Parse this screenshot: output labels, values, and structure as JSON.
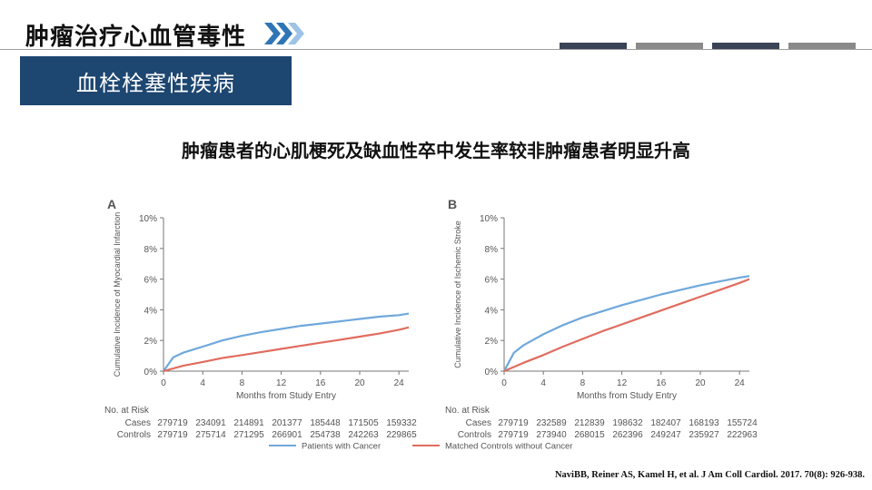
{
  "header": {
    "title": "肿瘤治疗心血管毒性"
  },
  "colors": {
    "deco_bars": [
      "#3b4456",
      "#8a8a8a",
      "#3b4456",
      "#8a8a8a"
    ],
    "banner_bg": "#1d4671",
    "cancer": "#6fa8dc",
    "controls": "#e06c5e"
  },
  "section": {
    "title": "血栓栓塞性疾病"
  },
  "subtitle": "肿瘤患者的心肌梗死及缺血性卒中发生率较非肿瘤患者明显升高",
  "chart_data": [
    {
      "panel": "A",
      "type": "line",
      "ylabel": "Cumulative Incidence of Myocardial Infarction",
      "xlabel": "Months from Study Entry",
      "xlim": [
        0,
        25
      ],
      "ylim": [
        0,
        10
      ],
      "xticks": [
        "0",
        "4",
        "8",
        "12",
        "16",
        "20",
        "24"
      ],
      "yticks": [
        "0%",
        "2%",
        "4%",
        "6%",
        "8%",
        "10%"
      ],
      "series": [
        {
          "name": "Patients with Cancer",
          "x": [
            0,
            1,
            2,
            4,
            6,
            8,
            10,
            12,
            14,
            16,
            18,
            20,
            22,
            24,
            25
          ],
          "y": [
            0,
            0.9,
            1.2,
            1.6,
            2.0,
            2.3,
            2.55,
            2.75,
            2.95,
            3.1,
            3.25,
            3.4,
            3.55,
            3.65,
            3.75
          ]
        },
        {
          "name": "Matched Controls without Cancer",
          "x": [
            0,
            2,
            4,
            6,
            8,
            10,
            12,
            14,
            16,
            18,
            20,
            22,
            24,
            25
          ],
          "y": [
            0,
            0.35,
            0.6,
            0.85,
            1.05,
            1.25,
            1.45,
            1.65,
            1.85,
            2.05,
            2.25,
            2.45,
            2.7,
            2.85
          ]
        }
      ],
      "at_risk": {
        "title": "No. at Risk",
        "rows": [
          {
            "label": "Cases",
            "values": [
              "279719",
              "234091",
              "214891",
              "201377",
              "185448",
              "171505",
              "159332"
            ]
          },
          {
            "label": "Controls",
            "values": [
              "279719",
              "275714",
              "271295",
              "266901",
              "254738",
              "242263",
              "229865"
            ]
          }
        ]
      }
    },
    {
      "panel": "B",
      "type": "line",
      "ylabel": "Cumulative Incidence of Ischemic Stroke",
      "xlabel": "Months from Study Entry",
      "xlim": [
        0,
        25
      ],
      "ylim": [
        0,
        10
      ],
      "xticks": [
        "0",
        "4",
        "8",
        "12",
        "16",
        "20",
        "24"
      ],
      "yticks": [
        "0%",
        "2%",
        "4%",
        "6%",
        "8%",
        "10%"
      ],
      "series": [
        {
          "name": "Patients with Cancer",
          "x": [
            0,
            1,
            2,
            4,
            6,
            8,
            10,
            12,
            14,
            16,
            18,
            20,
            22,
            24,
            25
          ],
          "y": [
            0,
            1.2,
            1.7,
            2.4,
            3.0,
            3.5,
            3.9,
            4.3,
            4.65,
            5.0,
            5.3,
            5.6,
            5.85,
            6.1,
            6.2
          ]
        },
        {
          "name": "Matched Controls without Cancer",
          "x": [
            0,
            2,
            4,
            6,
            8,
            10,
            12,
            14,
            16,
            18,
            20,
            22,
            24,
            25
          ],
          "y": [
            0,
            0.55,
            1.05,
            1.6,
            2.1,
            2.6,
            3.05,
            3.5,
            3.95,
            4.4,
            4.85,
            5.3,
            5.75,
            6.0
          ]
        }
      ],
      "at_risk": {
        "title": "No. at Risk",
        "rows": [
          {
            "label": "Cases",
            "values": [
              "279719",
              "232589",
              "212839",
              "198632",
              "182407",
              "168193",
              "155724"
            ]
          },
          {
            "label": "Controls",
            "values": [
              "279719",
              "273940",
              "268015",
              "262396",
              "249247",
              "235927",
              "222963"
            ]
          }
        ]
      }
    }
  ],
  "legend": {
    "items": [
      "Patients with Cancer",
      "Matched Controls without Cancer"
    ]
  },
  "citation": "NaviBB, Reiner AS, Kamel H, et al. J Am Coll Cardiol. 2017. 70(8): 926-938."
}
